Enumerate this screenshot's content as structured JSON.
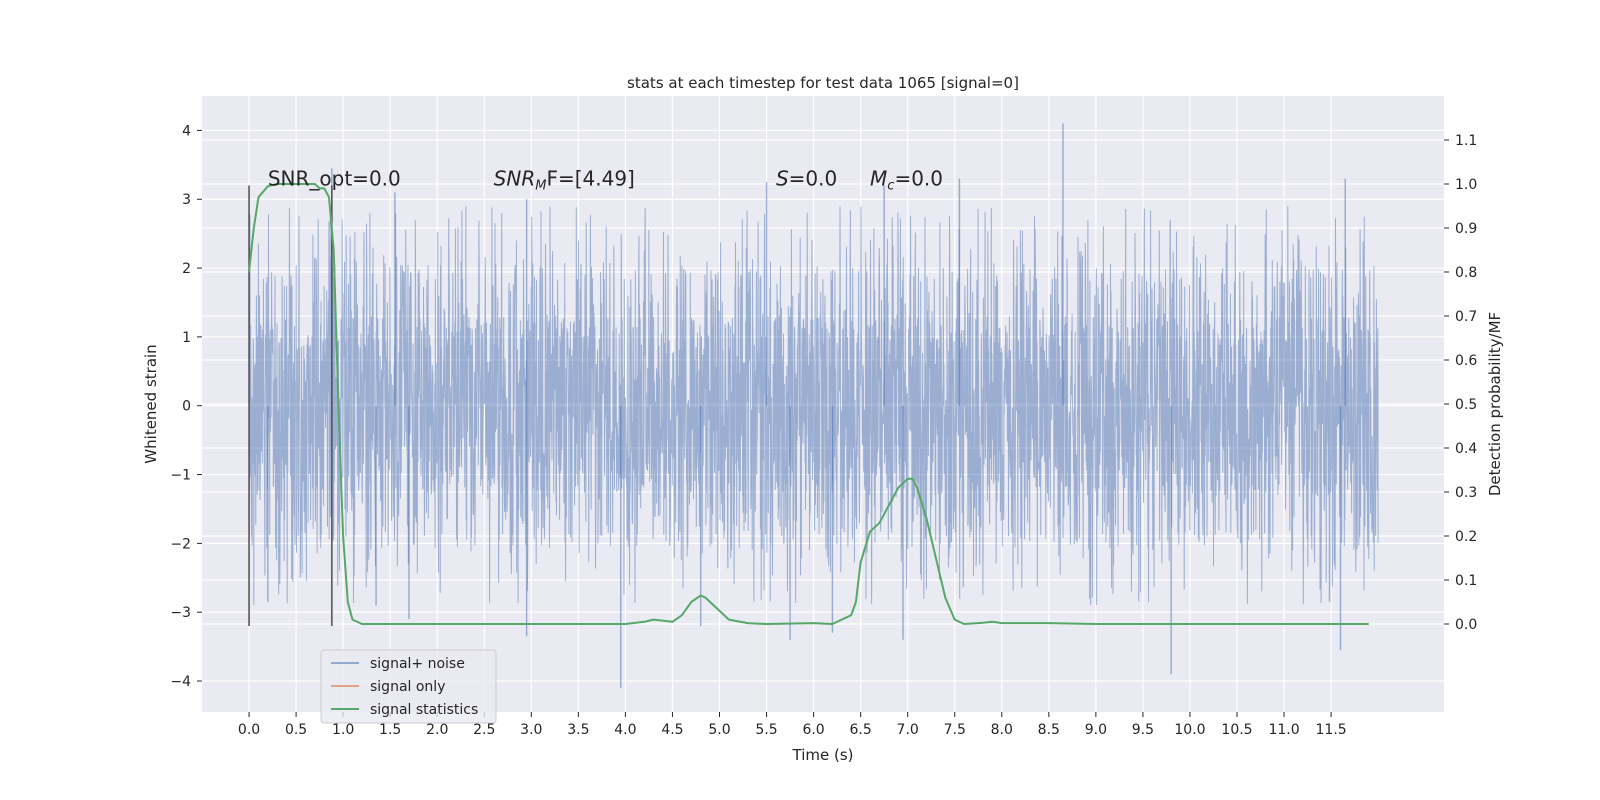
{
  "chart_data": {
    "type": "line",
    "title": "stats at each timestep for test data 1065 [signal=0]",
    "xlabel": "Time (s)",
    "ylabel": "Whitened strain",
    "y2label": "Detection probability/MF",
    "xlim": [
      -0.5,
      12.7
    ],
    "ylim": [
      -4.45,
      4.5
    ],
    "y2lim": [
      -0.2,
      1.2
    ],
    "xticks": [
      0.0,
      0.5,
      1.0,
      1.5,
      2.0,
      2.5,
      3.0,
      3.5,
      4.0,
      4.5,
      5.0,
      5.5,
      6.0,
      6.5,
      7.0,
      7.5,
      8.0,
      8.5,
      9.0,
      9.5,
      10.0,
      10.5,
      11.0,
      11.5
    ],
    "xtick_labels": [
      "0.0",
      "0.5",
      "1.0",
      "1.5",
      "2.0",
      "2.5",
      "3.0",
      "3.5",
      "4.0",
      "4.5",
      "5.0",
      "5.5",
      "6.0",
      "6.5",
      "7.0",
      "7.5",
      "8.0",
      "8.5",
      "9.0",
      "9.5",
      "10.0",
      "10.5",
      "11.0",
      "11.5"
    ],
    "yticks": [
      -4,
      -3,
      -2,
      -1,
      0,
      1,
      2,
      3,
      4
    ],
    "ytick_labels": [
      "−4",
      "−3",
      "−2",
      "−1",
      "0",
      "1",
      "2",
      "3",
      "4"
    ],
    "y2ticks": [
      0.0,
      0.1,
      0.2,
      0.3,
      0.4,
      0.5,
      0.6,
      0.7,
      0.8,
      0.9,
      1.0,
      1.1
    ],
    "y2tick_labels": [
      "0.0",
      "0.1",
      "0.2",
      "0.3",
      "0.4",
      "0.5",
      "0.6",
      "0.7",
      "0.8",
      "0.9",
      "1.0",
      "1.1"
    ],
    "grid": true,
    "legend_position": "lower-left",
    "annotations": [
      {
        "id": "snr-opt",
        "text": "SNR_opt=0.0",
        "x": 0.2,
        "y": 3.2
      },
      {
        "id": "snr-mf",
        "text_italic": "SNR",
        "sub": "M",
        "text_tail": "F=[4.49]",
        "x": 2.6,
        "y": 3.2
      },
      {
        "id": "s-val",
        "text_italic": "S",
        "text_tail": "=0.0",
        "x": 5.6,
        "y": 3.2
      },
      {
        "id": "mc-val",
        "text_italic": "M",
        "sub": "c",
        "text_tail": "=0.0",
        "x": 6.6,
        "y": 3.2
      }
    ],
    "vlines": [
      {
        "x": 0.0,
        "y": [
          -3.2,
          3.2
        ],
        "color": "#4d4d4d"
      },
      {
        "x": 0.88,
        "y": [
          -3.2,
          3.2
        ],
        "color": "#4d4d4d"
      }
    ],
    "series": [
      {
        "name": "signal+ noise",
        "color": "#4c72b0",
        "axis": "left",
        "style": "noise",
        "x_range": [
          0.0,
          12.0
        ],
        "core_amplitude": 1.3,
        "peaks": [
          {
            "x": 8.65,
            "y": 4.1
          },
          {
            "x": 0.88,
            "y": 3.45
          },
          {
            "x": 7.55,
            "y": 3.3
          },
          {
            "x": 11.65,
            "y": 3.3
          },
          {
            "x": 1.55,
            "y": 3.1
          },
          {
            "x": 5.5,
            "y": 3.25
          },
          {
            "x": 2.95,
            "y": 3.0
          },
          {
            "x": 6.75,
            "y": 3.2
          },
          {
            "x": 3.95,
            "y": -4.1
          },
          {
            "x": 9.8,
            "y": -3.9
          },
          {
            "x": 11.6,
            "y": -3.55
          },
          {
            "x": 5.75,
            "y": -3.4
          },
          {
            "x": 6.95,
            "y": -3.4
          },
          {
            "x": 2.95,
            "y": -3.35
          },
          {
            "x": 6.2,
            "y": -3.3
          },
          {
            "x": 4.8,
            "y": -3.2
          },
          {
            "x": 1.7,
            "y": -3.1
          },
          {
            "x": 0.2,
            "y": -2.85
          },
          {
            "x": 1.35,
            "y": -2.9
          }
        ]
      },
      {
        "name": "signal only",
        "color": "#dd8452",
        "axis": "left",
        "x": [],
        "y": []
      },
      {
        "name": "signal statistics",
        "color": "#55a868",
        "axis": "right",
        "x": [
          0.0,
          0.05,
          0.1,
          0.2,
          0.3,
          0.5,
          0.7,
          0.75,
          0.8,
          0.85,
          0.9,
          0.95,
          1.0,
          1.05,
          1.1,
          1.2,
          1.5,
          2.0,
          3.0,
          3.5,
          4.0,
          4.2,
          4.3,
          4.5,
          4.6,
          4.7,
          4.8,
          4.85,
          4.9,
          5.0,
          5.1,
          5.3,
          5.5,
          6.0,
          6.2,
          6.4,
          6.45,
          6.5,
          6.6,
          6.7,
          6.8,
          6.9,
          7.0,
          7.05,
          7.1,
          7.2,
          7.3,
          7.4,
          7.5,
          7.6,
          7.8,
          7.9,
          8.0,
          8.5,
          9.0,
          10.0,
          11.0,
          11.9
        ],
        "y": [
          0.8,
          0.9,
          0.97,
          0.995,
          1.0,
          1.0,
          1.0,
          0.99,
          0.99,
          0.97,
          0.85,
          0.5,
          0.2,
          0.05,
          0.01,
          0.0,
          0.0,
          0.0,
          0.0,
          0.0,
          0.0,
          0.005,
          0.01,
          0.005,
          0.02,
          0.05,
          0.065,
          0.06,
          0.05,
          0.03,
          0.01,
          0.002,
          0.0,
          0.002,
          0.0,
          0.02,
          0.05,
          0.14,
          0.21,
          0.23,
          0.27,
          0.31,
          0.33,
          0.33,
          0.31,
          0.24,
          0.15,
          0.06,
          0.01,
          0.0,
          0.003,
          0.005,
          0.002,
          0.002,
          0.0,
          0.0,
          0.0,
          0.0
        ]
      }
    ]
  }
}
